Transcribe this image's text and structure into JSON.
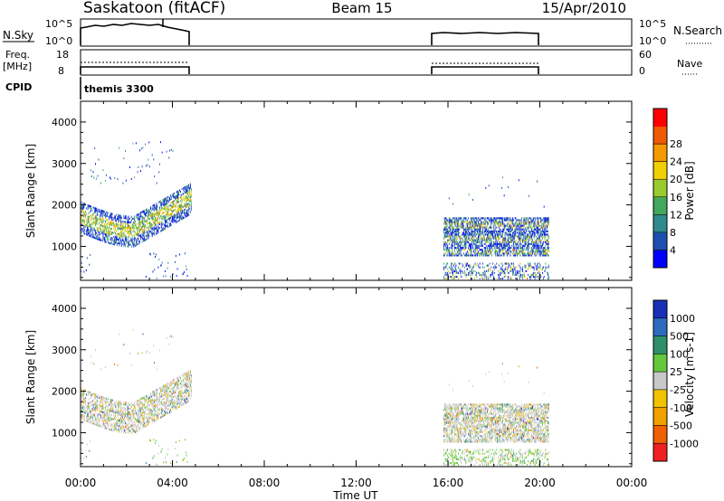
{
  "header": {
    "title": "Saskatoon (fitACF)",
    "beam": "Beam 15",
    "date": "15/Apr/2010"
  },
  "top_panels": {
    "nsky": {
      "left_label": "N.Sky",
      "right_label": "N.Search",
      "ticks": [
        "10^5",
        "10^0"
      ]
    },
    "freq": {
      "left_label_1": "Freq.",
      "left_label_2": "[MHz]",
      "left_ticks": [
        "18",
        "8"
      ],
      "right_ticks": [
        "60",
        "0"
      ],
      "right_label": "Nave"
    },
    "cpid": {
      "label": "CPID",
      "program": "themis 3300"
    }
  },
  "chart_data": [
    {
      "type": "heatmap",
      "title": "Power",
      "ylabel": "Slant Range [km]",
      "xlabel": "Time UT",
      "x_ticks": [
        "00:00",
        "04:00",
        "08:00",
        "12:00",
        "16:00",
        "20:00",
        "00:00"
      ],
      "y_ticks": [
        "1000",
        "2000",
        "3000",
        "4000"
      ],
      "ylim": [
        180,
        4500
      ],
      "x_range_hours": [
        0,
        24
      ],
      "colorbar": {
        "label": "Power [dB]",
        "ticks": [
          "4",
          "8",
          "12",
          "16",
          "20",
          "24",
          "28"
        ],
        "colors": [
          "#0000ff",
          "#1e4fb0",
          "#2f8a8f",
          "#42a85c",
          "#9acb2e",
          "#f0d000",
          "#f59a00",
          "#f05a00",
          "#ff0000"
        ]
      },
      "coverage": [
        {
          "start_ut": "00:00",
          "end_ut": "04:48",
          "band_km": [
            1100,
            2400
          ]
        },
        {
          "start_ut": "15:48",
          "end_ut": "20:24",
          "band_km": [
            800,
            1700
          ]
        }
      ]
    },
    {
      "type": "heatmap",
      "title": "Velocity",
      "ylabel": "Slant Range [km]",
      "xlabel": "Time UT",
      "x_ticks": [
        "00:00",
        "04:00",
        "08:00",
        "12:00",
        "16:00",
        "20:00",
        "00:00"
      ],
      "y_ticks": [
        "1000",
        "2000",
        "3000",
        "4000"
      ],
      "ylim": [
        180,
        4500
      ],
      "colorbar": {
        "label": "Velocity [m s-1]",
        "ticks": [
          "1000",
          "500",
          "100",
          "25",
          "-25",
          "-100",
          "-500",
          "-1000"
        ],
        "colors": [
          "#1a2fb8",
          "#2d6bbf",
          "#2f8f6a",
          "#64c83c",
          "#c8c8c8",
          "#f2c200",
          "#f0a000",
          "#f06000",
          "#f02020"
        ]
      }
    }
  ]
}
